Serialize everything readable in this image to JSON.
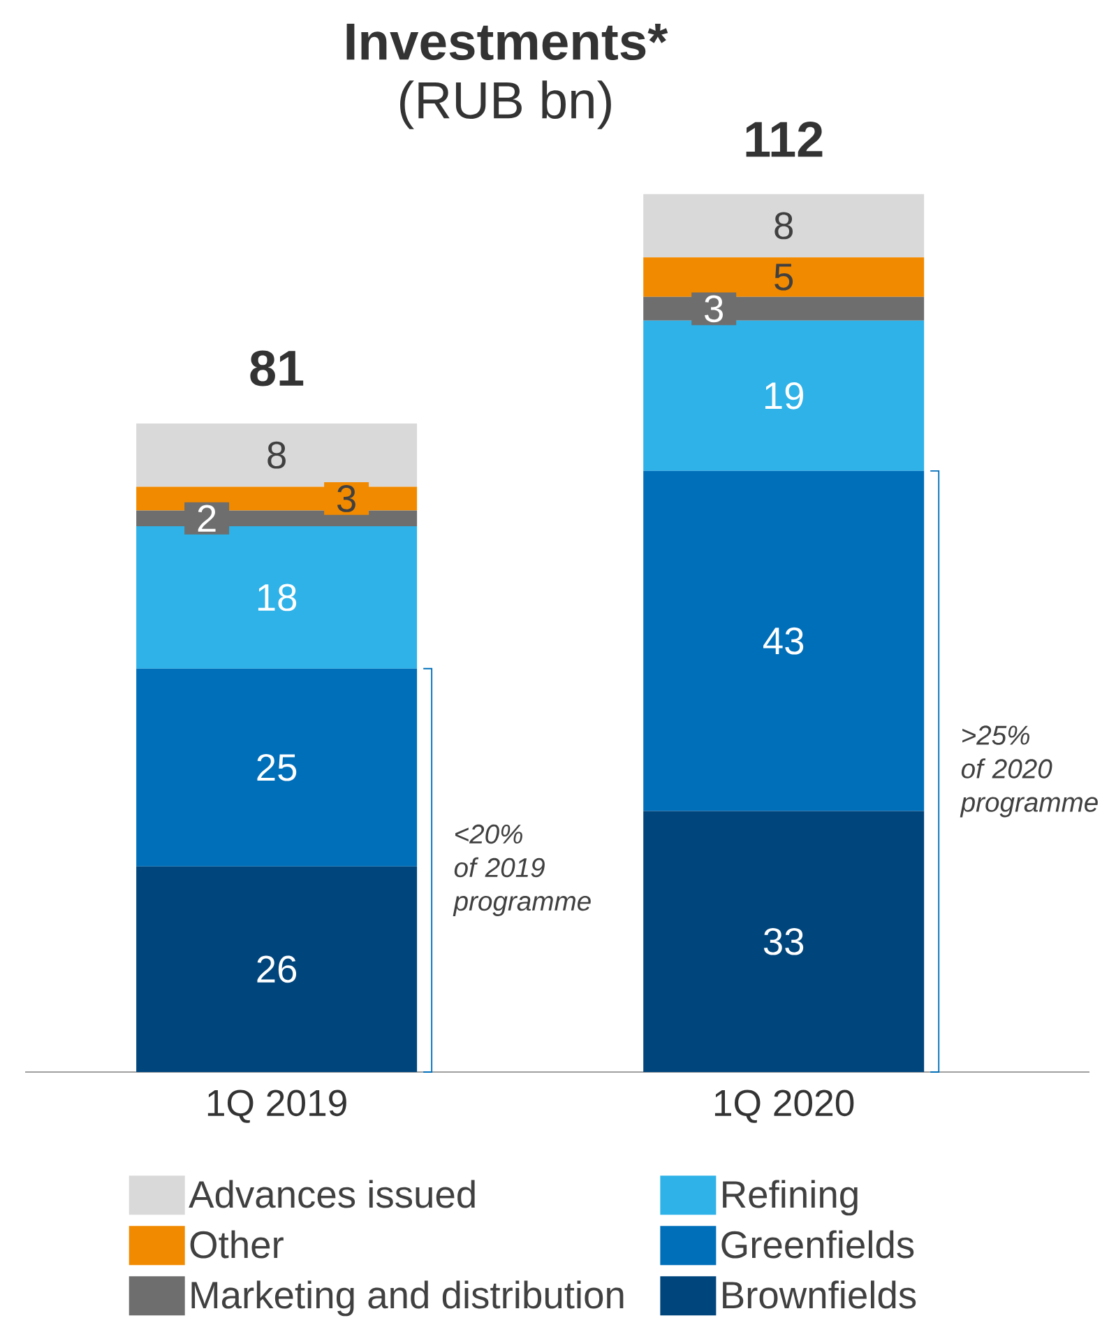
{
  "chart_data": {
    "type": "bar",
    "stacked": true,
    "title": "Investments*",
    "subtitle": "(RUB bn)",
    "categories": [
      "1Q 2019",
      "1Q 2020"
    ],
    "series": [
      {
        "name": "Brownfields",
        "color": "#00457c",
        "values": [
          26,
          33
        ]
      },
      {
        "name": "Greenfields",
        "color": "#006fba",
        "values": [
          25,
          43
        ]
      },
      {
        "name": "Refining",
        "color": "#2eb2e8",
        "values": [
          18,
          19
        ]
      },
      {
        "name": "Marketing and distribution",
        "color": "#6e6e6e",
        "values": [
          2,
          3
        ]
      },
      {
        "name": "Other",
        "color": "#f28a00",
        "values": [
          3,
          5
        ]
      },
      {
        "name": "Advances issued",
        "color": "#d9d9d9",
        "values": [
          8,
          8
        ]
      }
    ],
    "data_labels": true,
    "totals": [
      "81",
      "112"
    ],
    "legend": "bottom",
    "annotations": [
      "<20% of 2019 programme",
      ">25% of 2020 programme"
    ]
  }
}
